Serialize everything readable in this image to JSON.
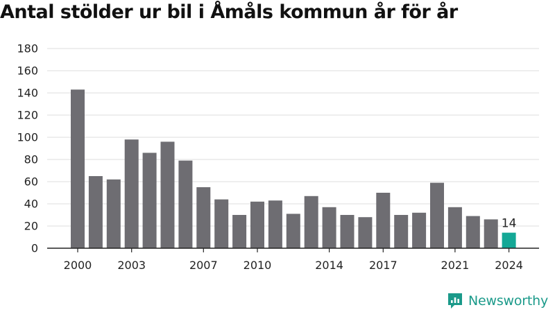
{
  "brand": {
    "name": "Newsworthy",
    "color": "#1b9a8a",
    "icon": "newsworthy-logo-icon"
  },
  "chart_data": {
    "type": "bar",
    "title": "Antal stölder ur bil i Åmåls kommun år för år",
    "xlabel": "",
    "ylabel": "",
    "ylim": [
      0,
      180
    ],
    "y_ticks": [
      0,
      20,
      40,
      60,
      80,
      100,
      120,
      140,
      160,
      180
    ],
    "x_tick_labels": [
      "2000",
      "2003",
      "2007",
      "2010",
      "2014",
      "2017",
      "2021",
      "2024"
    ],
    "grid": true,
    "legend": "none",
    "bar_color": "#6e6d72",
    "highlight_color": "#14a896",
    "highlight_category": "2024",
    "categories": [
      "2000",
      "2001",
      "2002",
      "2003",
      "2004",
      "2005",
      "2006",
      "2007",
      "2008",
      "2009",
      "2010",
      "2011",
      "2012",
      "2013",
      "2014",
      "2015",
      "2016",
      "2017",
      "2018",
      "2019",
      "2020",
      "2021",
      "2022",
      "2023",
      "2024"
    ],
    "values": [
      143,
      65,
      62,
      98,
      86,
      96,
      79,
      55,
      44,
      30,
      42,
      43,
      31,
      47,
      37,
      30,
      28,
      50,
      30,
      32,
      59,
      37,
      29,
      26,
      14
    ],
    "data_labels": [
      {
        "category": "2024",
        "text": "14"
      }
    ]
  }
}
